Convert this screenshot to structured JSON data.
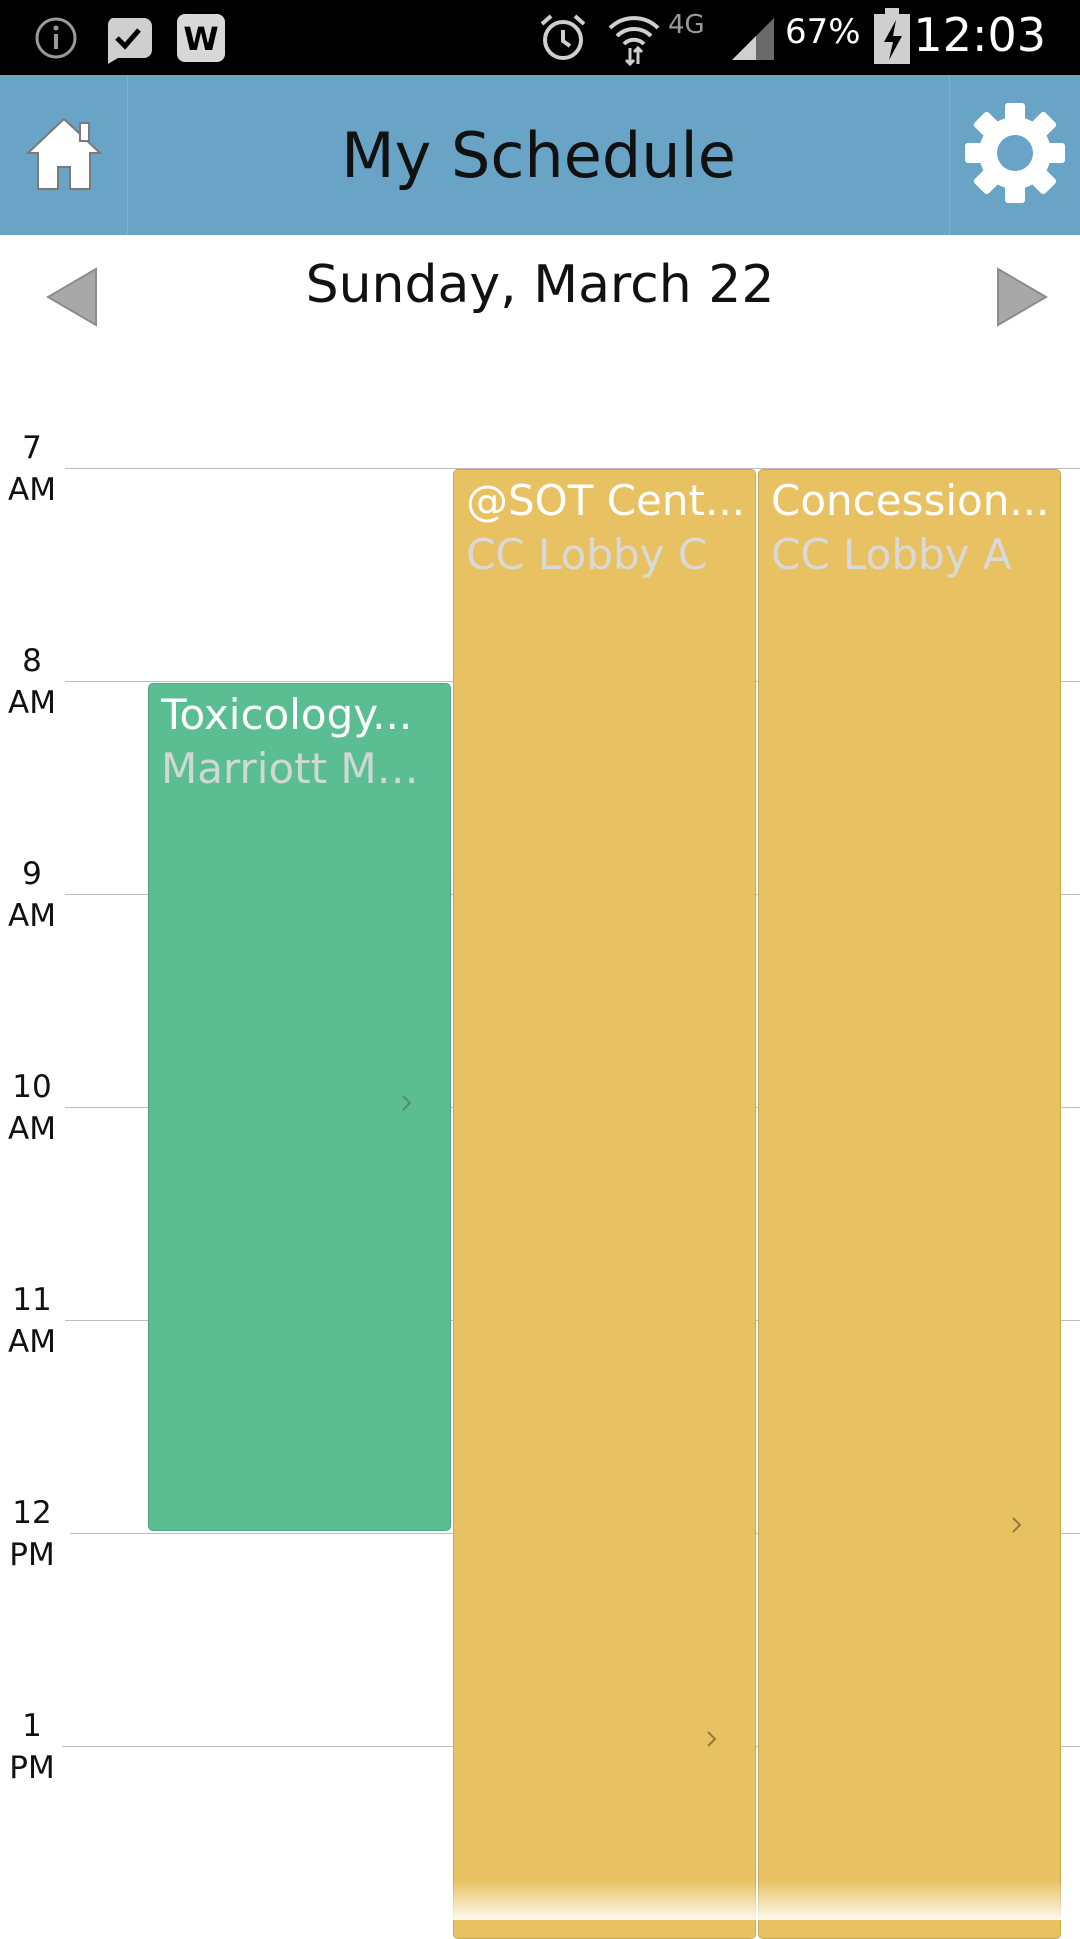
{
  "status_bar": {
    "battery": "67%",
    "network": "4G",
    "time": "12:03"
  },
  "header": {
    "title": "My Schedule"
  },
  "date_nav": {
    "date": "Sunday, March 22"
  },
  "hours": [
    {
      "hour": "7",
      "period": "AM"
    },
    {
      "hour": "8",
      "period": "AM"
    },
    {
      "hour": "9",
      "period": "AM"
    },
    {
      "hour": "10",
      "period": "AM"
    },
    {
      "hour": "11",
      "period": "AM"
    },
    {
      "hour": "12",
      "period": "PM"
    },
    {
      "hour": "1",
      "period": "PM"
    }
  ],
  "events": [
    {
      "title": "Toxicology...",
      "location": "Marriott Ma...",
      "color": "#5bbe93"
    },
    {
      "title": "@SOT Cent...",
      "location": "CC Lobby C",
      "color": "#e8c262"
    },
    {
      "title": "Concession...",
      "location": "CC Lobby A",
      "color": "#e8c262"
    }
  ],
  "colors": {
    "header_bg": "#69a3c6",
    "status_bg": "#000000"
  }
}
